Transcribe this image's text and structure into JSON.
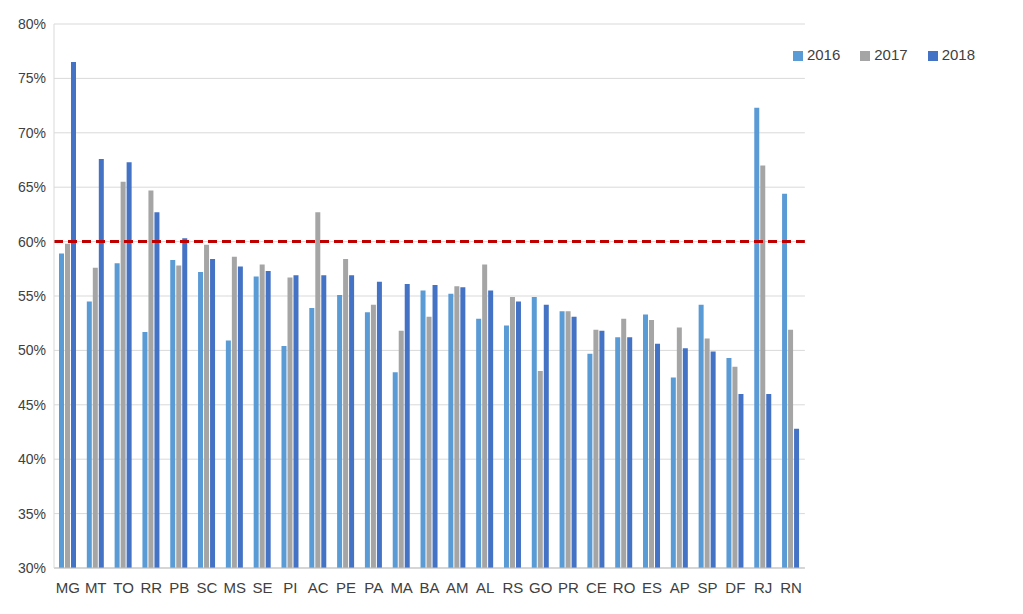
{
  "chart_data": {
    "type": "bar",
    "categories": [
      "MG",
      "MT",
      "TO",
      "RR",
      "PB",
      "SC",
      "MS",
      "SE",
      "PI",
      "AC",
      "PE",
      "PA",
      "MA",
      "BA",
      "AM",
      "AL",
      "RS",
      "GO",
      "PR",
      "CE",
      "RO",
      "ES",
      "AP",
      "SP",
      "DF",
      "RJ",
      "RN"
    ],
    "series": [
      {
        "name": "2016",
        "color": "#5b9bd5",
        "values": [
          58.9,
          54.5,
          58.0,
          51.7,
          58.3,
          57.2,
          50.9,
          56.8,
          50.4,
          53.9,
          55.1,
          53.5,
          48.0,
          55.5,
          55.2,
          52.9,
          52.3,
          54.9,
          53.6,
          49.7,
          51.2,
          53.3,
          47.5,
          54.2,
          49.3,
          72.3,
          64.4
        ]
      },
      {
        "name": "2017",
        "color": "#a5a5a5",
        "values": [
          59.8,
          57.6,
          65.5,
          64.7,
          57.8,
          59.7,
          58.6,
          57.9,
          56.7,
          62.7,
          58.4,
          54.2,
          51.8,
          53.1,
          55.9,
          57.9,
          54.9,
          48.1,
          53.6,
          51.9,
          52.9,
          52.8,
          52.1,
          51.1,
          48.5,
          67.0,
          51.9
        ]
      },
      {
        "name": "2018",
        "color": "#4472c4",
        "values": [
          76.5,
          67.6,
          67.3,
          62.7,
          60.3,
          58.4,
          57.7,
          57.3,
          56.9,
          56.9,
          56.9,
          56.3,
          56.1,
          56.0,
          55.8,
          55.5,
          54.5,
          54.2,
          53.1,
          51.8,
          51.2,
          50.6,
          50.2,
          49.9,
          46.0,
          46.0,
          42.8
        ]
      }
    ],
    "ylim": [
      30,
      80
    ],
    "yticks": [
      {
        "value": 30,
        "label": "30%"
      },
      {
        "value": 35,
        "label": "35%"
      },
      {
        "value": 40,
        "label": "40%"
      },
      {
        "value": 45,
        "label": "45%"
      },
      {
        "value": 50,
        "label": "50%"
      },
      {
        "value": 55,
        "label": "55%"
      },
      {
        "value": 60,
        "label": "60%"
      },
      {
        "value": 65,
        "label": "65%"
      },
      {
        "value": 70,
        "label": "70%"
      },
      {
        "value": 75,
        "label": "75%"
      },
      {
        "value": 80,
        "label": "80%"
      }
    ],
    "threshold": 60,
    "grid": true,
    "legend": "top-right"
  }
}
